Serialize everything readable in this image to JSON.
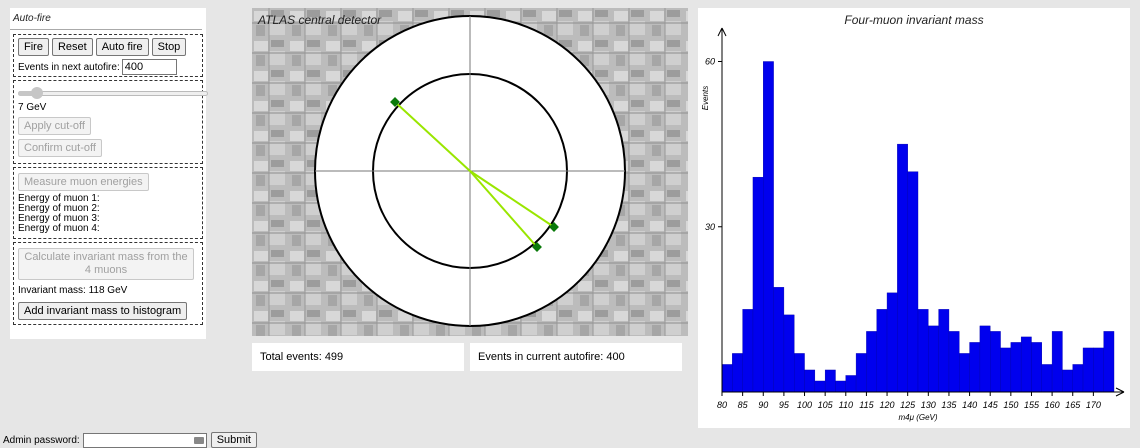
{
  "left_panel": {
    "title": "Auto-fire",
    "buttons": {
      "fire": "Fire",
      "reset": "Reset",
      "auto_fire": "Auto fire",
      "stop": "Stop"
    },
    "events_label": "Events in next autofire:",
    "events_value": "400",
    "cutoff_slider": {
      "value": 0.1
    },
    "cutoff_text": "7  GeV",
    "apply_cutoff": "Apply cut-off",
    "confirm_cutoff": "Confirm cut-off",
    "measure_energies": "Measure muon energies",
    "energies": [
      "Energy of muon 1:",
      "Energy of muon 2:",
      "Energy of muon 3:",
      "Energy of muon 4:"
    ],
    "calculate_mass": "Calculate invariant mass from the 4 muons",
    "invariant_mass": "Invariant mass: 118 GeV",
    "add_to_histogram": "Add invariant mass to histogram"
  },
  "detector": {
    "title": "ATLAS central detector",
    "track_color": "#99e600",
    "hit_color": "#0a7a0a"
  },
  "stats": {
    "total_events": "Total events: 499",
    "current_autofire": "Events in current autofire: 400"
  },
  "admin": {
    "password_label": "Admin password:",
    "submit": "Submit"
  },
  "chart_data": {
    "type": "bar",
    "title": "Four-muon invariant mass",
    "xlabel": "m4μ (GeV)",
    "ylabel": "Events",
    "bar_color": "#0000ee",
    "bin_width": 2.5,
    "x_start": 80,
    "xlim": [
      80,
      175
    ],
    "ylim": [
      0,
      61
    ],
    "x_ticks": [
      80,
      85,
      90,
      95,
      100,
      105,
      110,
      115,
      120,
      125,
      130,
      135,
      140,
      145,
      150,
      155,
      160,
      165,
      170
    ],
    "y_ticks": [
      30,
      60
    ],
    "values": [
      5,
      7,
      15,
      39,
      60,
      19,
      14,
      7,
      4,
      2,
      4,
      2,
      3,
      7,
      11,
      15,
      18,
      45,
      40,
      15,
      12,
      15,
      11,
      7,
      9,
      12,
      11,
      8,
      9,
      10,
      9,
      5,
      11,
      4,
      5,
      8,
      8,
      11
    ]
  }
}
